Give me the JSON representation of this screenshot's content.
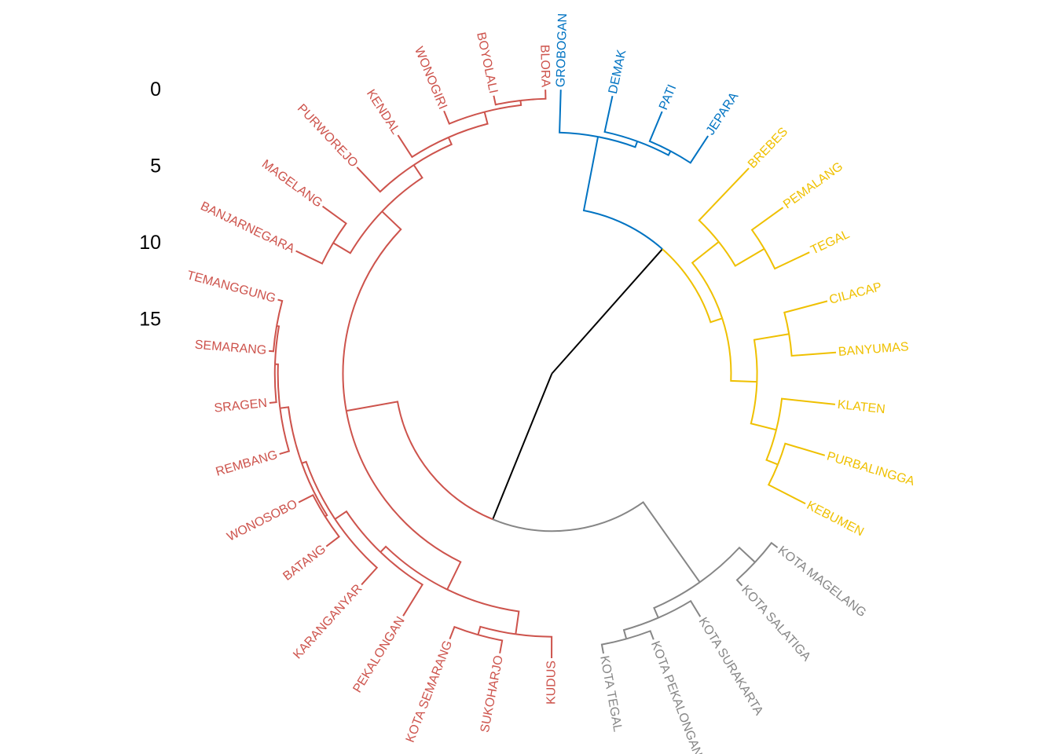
{
  "chart_data": {
    "type": "dendrogram",
    "layout": "circular",
    "title": "",
    "y_axis": {
      "ticks": [
        0,
        5,
        10,
        15
      ],
      "tick_labels": [
        "0",
        "5",
        "10",
        "15"
      ]
    },
    "root_height": 18.6,
    "root_color": "#000000",
    "clusters": [
      {
        "id": "blue",
        "color": "#0073C2"
      },
      {
        "id": "yellow",
        "color": "#EFC000"
      },
      {
        "id": "grey",
        "color": "#868686"
      },
      {
        "id": "red",
        "color": "#CD534C"
      }
    ],
    "tree": {
      "h": 18.6,
      "c": [
        {
          "h": 7.7,
          "c": [
            {
              "h": 2.8,
              "cluster": "blue",
              "c": [
                {
                  "label": "GROBOGAN"
                },
                {
                  "h": 2.4,
                  "c": [
                    {
                      "label": "DEMAK"
                    },
                    {
                      "h": 2.1,
                      "c": [
                        {
                          "label": "PATI"
                        },
                        {
                          "label": "JEPARA"
                        }
                      ]
                    }
                  ]
                }
              ]
            },
            {
              "h": 6.9,
              "cluster": "yellow",
              "c": [
                {
                  "h": 4.7,
                  "c": [
                    {
                      "label": "BREBES"
                    },
                    {
                      "h": 2.5,
                      "c": [
                        {
                          "label": "PEMALANG"
                        },
                        {
                          "label": "TEGAL"
                        }
                      ]
                    }
                  ]
                },
                {
                  "h": 5.2,
                  "c": [
                    {
                      "h": 2.9,
                      "c": [
                        {
                          "label": "CILACAP"
                        },
                        {
                          "label": "BANYUMAS"
                        }
                      ]
                    },
                    {
                      "h": 3.5,
                      "c": [
                        {
                          "label": "KLATEN"
                        },
                        {
                          "h": 2.7,
                          "c": [
                            {
                              "label": "PURBALINGGA"
                            },
                            {
                              "label": "KEBUMEN"
                            }
                          ]
                        }
                      ]
                    }
                  ]
                }
              ]
            }
          ]
        },
        {
          "h": 8.3,
          "c": [
            {
              "h": 1.9,
              "cluster": "grey",
              "c": [
                {
                  "h": 0.5,
                  "c": [
                    {
                      "label": "KOTA MAGELANG"
                    },
                    {
                      "label": "KOTA SALATIGA"
                    }
                  ]
                },
                {
                  "h": 1.2,
                  "c": [
                    {
                      "label": "KOTA SURAKARTA"
                    },
                    {
                      "h": 0.6,
                      "c": [
                        {
                          "label": "KOTA PEKALONGAN"
                        },
                        {
                          "label": "KOTA TEGAL"
                        }
                      ]
                    }
                  ]
                }
              ]
            },
            {
              "h": 4.9,
              "cluster": "red",
              "c": [
                {
                  "h": 2.9,
                  "c": [
                    {
                      "h": 1.4,
                      "c": [
                        {
                          "label": "KUDUS"
                        },
                        {
                          "h": 0.85,
                          "c": [
                            {
                              "label": "SUKOHARJO"
                            },
                            {
                              "label": "KOTA SEMARANG"
                            }
                          ]
                        }
                      ]
                    },
                    {
                      "h": 2.4,
                      "c": [
                        {
                          "label": "PEKALONGAN"
                        },
                        {
                          "h": 1.5,
                          "c": [
                            {
                              "label": "KARANGANYAR"
                            },
                            {
                              "h": 1.2,
                              "c": [
                                {
                                  "h": 1.05,
                                  "c": [
                                    {
                                      "label": "BATANG"
                                    },
                                    {
                                      "label": "WONOSOBO"
                                    }
                                  ]
                                },
                                {
                                  "h": 0.65,
                                  "c": [
                                    {
                                      "label": "REMBANG"
                                    },
                                    {
                                      "h": 0.45,
                                      "c": [
                                        {
                                          "label": "SRAGEN"
                                        },
                                        {
                                          "h": 0.3,
                                          "c": [
                                            {
                                              "label": "SEMARANG"
                                            },
                                            {
                                              "label": "TEMANGGUNG"
                                            }
                                          ]
                                        }
                                      ]
                                    }
                                  ]
                                }
                              ]
                            }
                          ]
                        }
                      ]
                    }
                  ]
                },
                {
                  "h": 3.2,
                  "c": [
                    {
                      "h": 1.9,
                      "c": [
                        {
                          "label": "BANJARNEGARA"
                        },
                        {
                          "label": "MAGELANG"
                        }
                      ]
                    },
                    {
                      "h": 2.2,
                      "c": [
                        {
                          "label": "PURWOREJO"
                        },
                        {
                          "h": 1.7,
                          "c": [
                            {
                              "label": "KENDAL"
                            },
                            {
                              "h": 0.9,
                              "c": [
                                {
                                  "label": "WONOGIRI"
                                },
                                {
                                  "h": 0.6,
                                  "c": [
                                    {
                                      "label": "BOYOLALI"
                                    },
                                    {
                                      "label": "BLORA"
                                    }
                                  ]
                                }
                              ]
                            }
                          ]
                        }
                      ]
                    }
                  ]
                }
              ]
            }
          ]
        }
      ]
    }
  }
}
